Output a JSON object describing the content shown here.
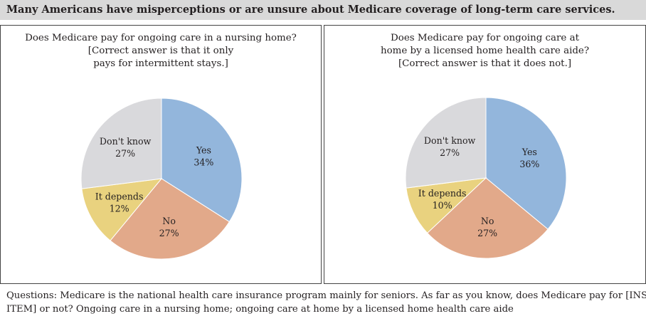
{
  "header": {
    "title": "Many Americans have misperceptions or are unsure about Medicare coverage of long-term care services."
  },
  "chart_data": [
    {
      "type": "pie",
      "title_lines": [
        "Does Medicare pay for ongoing care in a nursing home?",
        "[Correct answer is that it only",
        "pays for intermittent stays.]"
      ],
      "slices": [
        {
          "label": "Yes",
          "value": 34,
          "value_label": "34%",
          "color": "#93b6dc"
        },
        {
          "label": "No",
          "value": 27,
          "value_label": "27%",
          "color": "#e2a98a"
        },
        {
          "label": "It depends",
          "value": 12,
          "value_label": "12%",
          "color": "#e9d27f"
        },
        {
          "label": "Don't know",
          "value": 27,
          "value_label": "27%",
          "color": "#d9d9dc"
        }
      ]
    },
    {
      "type": "pie",
      "title_lines": [
        "Does Medicare pay for ongoing care at",
        "home by a licensed home health care aide?",
        "[Correct answer is that it does not.]"
      ],
      "slices": [
        {
          "label": "Yes",
          "value": 36,
          "value_label": "36%",
          "color": "#93b6dc"
        },
        {
          "label": "No",
          "value": 27,
          "value_label": "27%",
          "color": "#e2a98a"
        },
        {
          "label": "It depends",
          "value": 10,
          "value_label": "10%",
          "color": "#e9d27f"
        },
        {
          "label": "Don't know",
          "value": 27,
          "value_label": "27%",
          "color": "#d9d9dc"
        }
      ]
    }
  ],
  "footer": {
    "lines": [
      "Questions: Medicare is the national health care insurance program mainly for seniors. As far as you know, does Medicare pay for [INSERT",
      "ITEM] or not? Ongoing care in a nursing home; ongoing care at home by a licensed home health care aide"
    ]
  }
}
